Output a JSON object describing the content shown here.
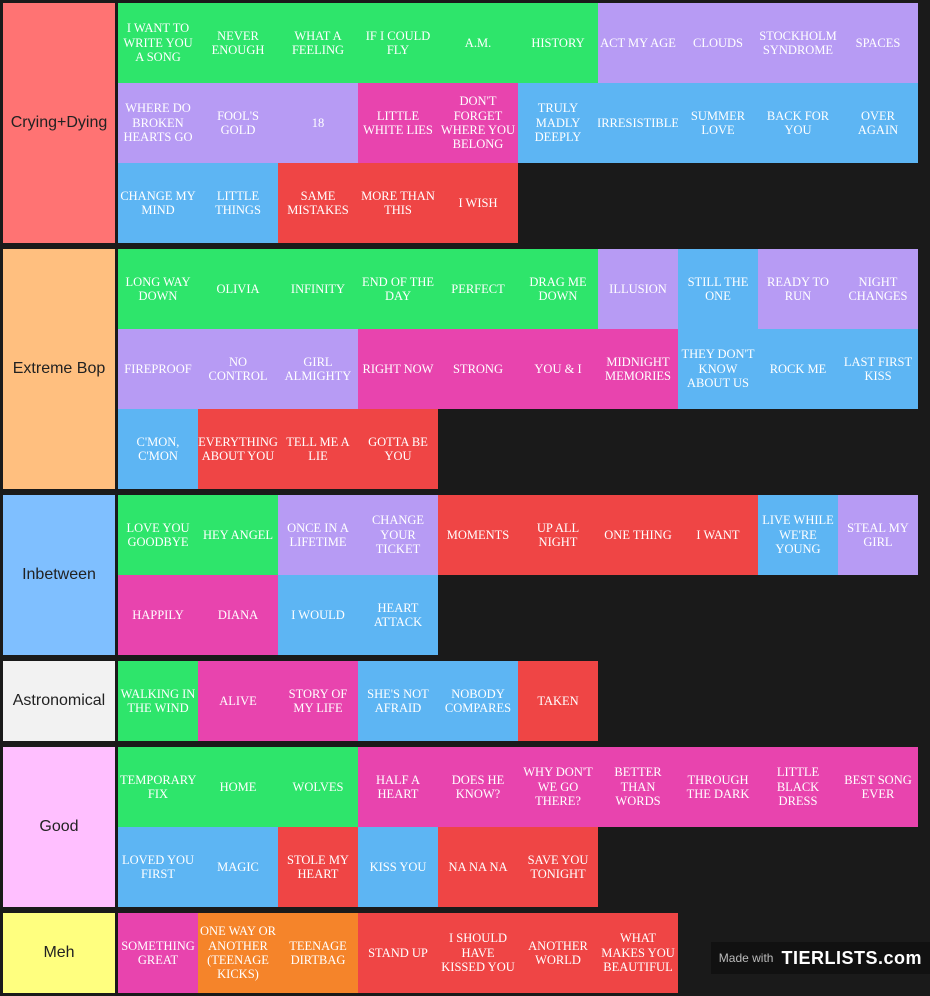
{
  "tiers": [
    {
      "label": "Crying+Dying",
      "color": "#ff7373",
      "rows": 3,
      "items": [
        {
          "text": "I want to write you a song",
          "c": "g"
        },
        {
          "text": "Never enough",
          "c": "g"
        },
        {
          "text": "What a feeling",
          "c": "g"
        },
        {
          "text": "If I could fly",
          "c": "g"
        },
        {
          "text": "A.M.",
          "c": "g"
        },
        {
          "text": "History",
          "c": "g"
        },
        {
          "text": "Act my age",
          "c": "p"
        },
        {
          "text": "Clouds",
          "c": "p"
        },
        {
          "text": "Stockholm syndrome",
          "c": "p"
        },
        {
          "text": "Spaces",
          "c": "p"
        },
        {
          "text": "Where do broken hearts go",
          "c": "p"
        },
        {
          "text": "Fool's gold",
          "c": "p"
        },
        {
          "text": "18",
          "c": "p"
        },
        {
          "text": "Little white lies",
          "c": "m"
        },
        {
          "text": "Don't forget where you belong",
          "c": "m"
        },
        {
          "text": "Truly madly deeply",
          "c": "b"
        },
        {
          "text": "Irresistible",
          "c": "b"
        },
        {
          "text": "Summer love",
          "c": "b"
        },
        {
          "text": "Back for you",
          "c": "b"
        },
        {
          "text": "Over again",
          "c": "b"
        },
        {
          "text": "Change my mind",
          "c": "b"
        },
        {
          "text": "Little things",
          "c": "b"
        },
        {
          "text": "Same mistakes",
          "c": "r"
        },
        {
          "text": "More than this",
          "c": "r"
        },
        {
          "text": "I wish",
          "c": "r"
        }
      ]
    },
    {
      "label": "Extreme Bop",
      "color": "#ffbf7f",
      "rows": 3,
      "items": [
        {
          "text": "Long way down",
          "c": "g"
        },
        {
          "text": "Olivia",
          "c": "g"
        },
        {
          "text": "Infinity",
          "c": "g"
        },
        {
          "text": "End of the day",
          "c": "g"
        },
        {
          "text": "Perfect",
          "c": "g"
        },
        {
          "text": "Drag me down",
          "c": "g"
        },
        {
          "text": "Illusion",
          "c": "p"
        },
        {
          "text": "Still the one",
          "c": "b"
        },
        {
          "text": "Ready to run",
          "c": "p"
        },
        {
          "text": "Night changes",
          "c": "p"
        },
        {
          "text": "Fireproof",
          "c": "p"
        },
        {
          "text": "No control",
          "c": "p"
        },
        {
          "text": "Girl almighty",
          "c": "p"
        },
        {
          "text": "Right now",
          "c": "m"
        },
        {
          "text": "Strong",
          "c": "m"
        },
        {
          "text": "You & I",
          "c": "m"
        },
        {
          "text": "Midnight memories",
          "c": "m"
        },
        {
          "text": "They don't know about us",
          "c": "b"
        },
        {
          "text": "Rock me",
          "c": "b"
        },
        {
          "text": "Last first kiss",
          "c": "b"
        },
        {
          "text": "C'mon, c'mon",
          "c": "b"
        },
        {
          "text": "Everything about you",
          "c": "r"
        },
        {
          "text": "Tell me a lie",
          "c": "r"
        },
        {
          "text": "Gotta be you",
          "c": "r"
        }
      ]
    },
    {
      "label": "Inbetween",
      "color": "#7fbfff",
      "rows": 2,
      "items": [
        {
          "text": "Love you goodbye",
          "c": "g"
        },
        {
          "text": "Hey angel",
          "c": "g"
        },
        {
          "text": "Once in a lifetime",
          "c": "p"
        },
        {
          "text": "Change your ticket",
          "c": "p"
        },
        {
          "text": "Moments",
          "c": "r"
        },
        {
          "text": "Up all night",
          "c": "r"
        },
        {
          "text": "One thing",
          "c": "r"
        },
        {
          "text": "I want",
          "c": "r"
        },
        {
          "text": "Live while we're young",
          "c": "b"
        },
        {
          "text": "Steal my girl",
          "c": "p"
        },
        {
          "text": "Happily",
          "c": "m"
        },
        {
          "text": "Diana",
          "c": "m"
        },
        {
          "text": "I would",
          "c": "b"
        },
        {
          "text": "Heart attack",
          "c": "b"
        }
      ]
    },
    {
      "label": "Astronomical",
      "color": "#f2f2f2",
      "rows": 1,
      "items": [
        {
          "text": "Walking in the wind",
          "c": "g"
        },
        {
          "text": "Alive",
          "c": "m"
        },
        {
          "text": "Story of my life",
          "c": "m"
        },
        {
          "text": "She's not afraid",
          "c": "b"
        },
        {
          "text": "Nobody compares",
          "c": "b"
        },
        {
          "text": "Taken",
          "c": "r"
        }
      ]
    },
    {
      "label": "Good",
      "color": "#ffbfff",
      "rows": 2,
      "items": [
        {
          "text": "Temporary fix",
          "c": "g"
        },
        {
          "text": "Home",
          "c": "g"
        },
        {
          "text": "Wolves",
          "c": "g"
        },
        {
          "text": "Half a heart",
          "c": "m"
        },
        {
          "text": "Does he know?",
          "c": "m"
        },
        {
          "text": "Why don't we go there?",
          "c": "m"
        },
        {
          "text": "Better than words",
          "c": "m"
        },
        {
          "text": "Through the dark",
          "c": "m"
        },
        {
          "text": "Little black dress",
          "c": "m"
        },
        {
          "text": "Best song ever",
          "c": "m"
        },
        {
          "text": "Loved you first",
          "c": "b"
        },
        {
          "text": "Magic",
          "c": "b"
        },
        {
          "text": "Stole my heart",
          "c": "r"
        },
        {
          "text": "Kiss you",
          "c": "b"
        },
        {
          "text": "Na na na",
          "c": "r"
        },
        {
          "text": "Save you tonight",
          "c": "r"
        }
      ]
    },
    {
      "label": "Meh",
      "color": "#ffff7f",
      "rows": 1,
      "items": [
        {
          "text": "Something great",
          "c": "m"
        },
        {
          "text": "One way or another (teenage kicks)",
          "c": "o"
        },
        {
          "text": "Teenage dirtbag",
          "c": "o"
        },
        {
          "text": "Stand up",
          "c": "r"
        },
        {
          "text": "I should have kissed you",
          "c": "r"
        },
        {
          "text": "Another world",
          "c": "r"
        },
        {
          "text": "What makes you beautiful",
          "c": "r"
        }
      ]
    }
  ],
  "watermark": {
    "made_with": "Made with",
    "logo": "TIERLISTS.com"
  }
}
